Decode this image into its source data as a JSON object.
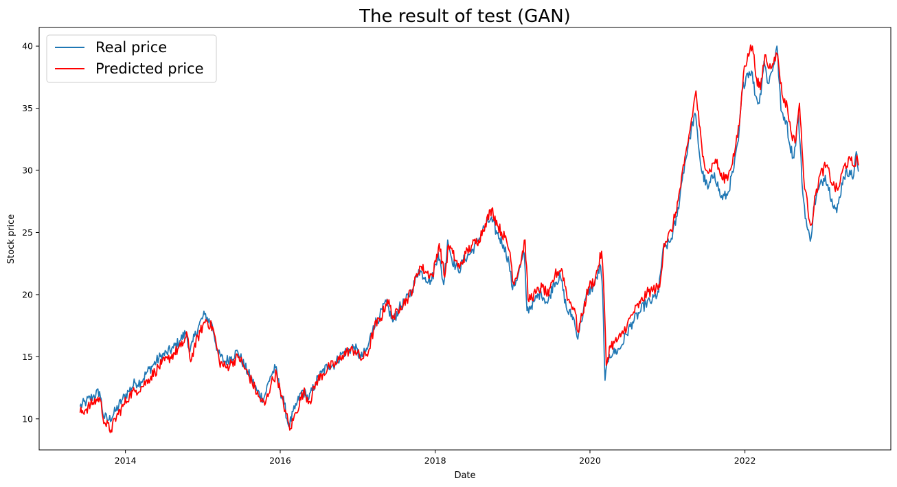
{
  "chart_data": {
    "type": "line",
    "title": "The result of test (GAN)",
    "xlabel": "Date",
    "ylabel": "Stock price",
    "xlim": [
      "2012-11-20",
      "2023-11-20"
    ],
    "ylim": [
      7.5,
      41.5
    ],
    "x_ticks": [
      "2014",
      "2016",
      "2018",
      "2020",
      "2022"
    ],
    "y_ticks": [
      "10",
      "15",
      "20",
      "25",
      "30",
      "35",
      "40"
    ],
    "grid": false,
    "legend": "upper-left",
    "series": [
      {
        "name": "Real price",
        "color": "#1f77b4",
        "points": [
          [
            "2013-06-01",
            11.0
          ],
          [
            "2013-07-01",
            11.4
          ],
          [
            "2013-08-01",
            11.8
          ],
          [
            "2013-09-01",
            12.2
          ],
          [
            "2013-09-20",
            10.2
          ],
          [
            "2013-10-15",
            9.9
          ],
          [
            "2013-11-15",
            10.6
          ],
          [
            "2013-12-15",
            11.5
          ],
          [
            "2014-01-15",
            12.2
          ],
          [
            "2014-02-15",
            12.9
          ],
          [
            "2014-03-15",
            13.0
          ],
          [
            "2014-04-15",
            13.8
          ],
          [
            "2014-05-15",
            14.4
          ],
          [
            "2014-06-15",
            15.0
          ],
          [
            "2014-07-15",
            15.3
          ],
          [
            "2014-08-15",
            15.7
          ],
          [
            "2014-09-15",
            16.3
          ],
          [
            "2014-10-15",
            17.0
          ],
          [
            "2014-11-01",
            15.4
          ],
          [
            "2014-11-15",
            16.2
          ],
          [
            "2014-12-15",
            17.6
          ],
          [
            "2015-01-10",
            18.4
          ],
          [
            "2015-02-15",
            17.5
          ],
          [
            "2015-03-15",
            15.2
          ],
          [
            "2015-04-15",
            14.6
          ],
          [
            "2015-05-15",
            15.0
          ],
          [
            "2015-06-15",
            15.4
          ],
          [
            "2015-07-15",
            14.3
          ],
          [
            "2015-08-15",
            13.3
          ],
          [
            "2015-09-15",
            12.2
          ],
          [
            "2015-10-15",
            11.6
          ],
          [
            "2015-11-15",
            13.4
          ],
          [
            "2015-12-10",
            14.1
          ],
          [
            "2016-01-01",
            12.3
          ],
          [
            "2016-01-20",
            11.2
          ],
          [
            "2016-02-10",
            9.4
          ],
          [
            "2016-03-10",
            10.8
          ],
          [
            "2016-04-15",
            12.3
          ],
          [
            "2016-05-15",
            11.6
          ],
          [
            "2016-06-15",
            12.9
          ],
          [
            "2016-07-15",
            13.7
          ],
          [
            "2016-08-15",
            14.3
          ],
          [
            "2016-09-15",
            14.4
          ],
          [
            "2016-10-15",
            15.2
          ],
          [
            "2016-11-15",
            15.5
          ],
          [
            "2016-12-15",
            15.8
          ],
          [
            "2017-01-15",
            14.9
          ],
          [
            "2017-02-15",
            15.6
          ],
          [
            "2017-03-15",
            17.5
          ],
          [
            "2017-04-15",
            18.3
          ],
          [
            "2017-05-15",
            19.4
          ],
          [
            "2017-06-15",
            17.8
          ],
          [
            "2017-07-15",
            18.9
          ],
          [
            "2017-08-15",
            19.5
          ],
          [
            "2017-09-15",
            20.4
          ],
          [
            "2017-10-15",
            22.0
          ],
          [
            "2017-11-15",
            21.4
          ],
          [
            "2017-12-15",
            21.1
          ],
          [
            "2018-01-15",
            23.4
          ],
          [
            "2018-02-10",
            20.8
          ],
          [
            "2018-03-01",
            24.4
          ],
          [
            "2018-03-20",
            22.9
          ],
          [
            "2018-04-20",
            21.9
          ],
          [
            "2018-05-20",
            22.9
          ],
          [
            "2018-06-20",
            23.4
          ],
          [
            "2018-07-20",
            24.3
          ],
          [
            "2018-08-20",
            25.4
          ],
          [
            "2018-09-20",
            26.1
          ],
          [
            "2018-10-20",
            24.9
          ],
          [
            "2018-11-20",
            24.0
          ],
          [
            "2018-12-15",
            22.6
          ],
          [
            "2019-01-01",
            20.4
          ],
          [
            "2019-01-30",
            21.8
          ],
          [
            "2019-02-25",
            23.3
          ],
          [
            "2019-03-10",
            18.7
          ],
          [
            "2019-04-15",
            19.5
          ],
          [
            "2019-05-15",
            20.2
          ],
          [
            "2019-06-15",
            19.3
          ],
          [
            "2019-07-15",
            21.0
          ],
          [
            "2019-08-15",
            21.4
          ],
          [
            "2019-09-15",
            18.7
          ],
          [
            "2019-10-15",
            18.2
          ],
          [
            "2019-11-01",
            16.6
          ],
          [
            "2019-11-20",
            17.8
          ],
          [
            "2019-12-20",
            20.2
          ],
          [
            "2020-01-20",
            20.7
          ],
          [
            "2020-02-20",
            22.3
          ],
          [
            "2020-03-01",
            20.0
          ],
          [
            "2020-03-12",
            13.1
          ],
          [
            "2020-04-01",
            15.2
          ],
          [
            "2020-04-20",
            15.3
          ],
          [
            "2020-05-20",
            15.6
          ],
          [
            "2020-06-20",
            16.8
          ],
          [
            "2020-07-20",
            17.8
          ],
          [
            "2020-08-20",
            18.5
          ],
          [
            "2020-09-20",
            19.3
          ],
          [
            "2020-10-20",
            19.5
          ],
          [
            "2020-11-20",
            20.2
          ],
          [
            "2020-12-10",
            23.6
          ],
          [
            "2021-01-15",
            24.3
          ],
          [
            "2021-02-15",
            26.3
          ],
          [
            "2021-03-15",
            29.8
          ],
          [
            "2021-04-15",
            32.6
          ],
          [
            "2021-05-10",
            34.6
          ],
          [
            "2021-06-10",
            30.0
          ],
          [
            "2021-07-10",
            28.5
          ],
          [
            "2021-08-10",
            29.8
          ],
          [
            "2021-09-10",
            27.8
          ],
          [
            "2021-10-10",
            28.0
          ],
          [
            "2021-11-10",
            30.2
          ],
          [
            "2021-12-01",
            32.4
          ],
          [
            "2021-12-20",
            36.5
          ],
          [
            "2022-01-10",
            37.8
          ],
          [
            "2022-02-01",
            38.0
          ],
          [
            "2022-02-20",
            36.0
          ],
          [
            "2022-03-10",
            35.4
          ],
          [
            "2022-04-01",
            38.8
          ],
          [
            "2022-04-20",
            37.0
          ],
          [
            "2022-05-15",
            38.4
          ],
          [
            "2022-06-01",
            40.0
          ],
          [
            "2022-06-20",
            34.8
          ],
          [
            "2022-07-15",
            34.0
          ],
          [
            "2022-08-01",
            32.0
          ],
          [
            "2022-08-20",
            31.0
          ],
          [
            "2022-09-10",
            34.5
          ],
          [
            "2022-10-01",
            28.1
          ],
          [
            "2022-10-20",
            25.5
          ],
          [
            "2022-11-05",
            24.3
          ],
          [
            "2022-11-25",
            27.3
          ],
          [
            "2022-12-15",
            28.5
          ],
          [
            "2023-01-15",
            29.6
          ],
          [
            "2023-02-15",
            27.7
          ],
          [
            "2023-03-10",
            26.6
          ],
          [
            "2023-04-10",
            29.5
          ],
          [
            "2023-05-10",
            30.0
          ],
          [
            "2023-05-25",
            29.3
          ],
          [
            "2023-06-10",
            31.5
          ],
          [
            "2023-06-20",
            29.9
          ]
        ]
      },
      {
        "name": "Predicted price",
        "color": "#ff0000",
        "points": [
          [
            "2013-06-01",
            10.5
          ],
          [
            "2013-07-01",
            10.8
          ],
          [
            "2013-08-01",
            11.3
          ],
          [
            "2013-09-01",
            11.7
          ],
          [
            "2013-09-25",
            9.7
          ],
          [
            "2013-10-25",
            9.1
          ],
          [
            "2013-11-20",
            10.2
          ],
          [
            "2013-12-20",
            11.0
          ],
          [
            "2014-01-20",
            11.9
          ],
          [
            "2014-02-20",
            12.3
          ],
          [
            "2014-03-20",
            12.6
          ],
          [
            "2014-04-20",
            13.2
          ],
          [
            "2014-05-20",
            13.8
          ],
          [
            "2014-06-20",
            14.4
          ],
          [
            "2014-07-20",
            14.8
          ],
          [
            "2014-08-20",
            15.3
          ],
          [
            "2014-09-20",
            15.8
          ],
          [
            "2014-10-20",
            16.7
          ],
          [
            "2014-11-05",
            14.6
          ],
          [
            "2014-11-20",
            15.7
          ],
          [
            "2014-12-20",
            17.0
          ],
          [
            "2015-01-15",
            18.0
          ],
          [
            "2015-02-20",
            17.2
          ],
          [
            "2015-03-20",
            14.6
          ],
          [
            "2015-04-20",
            14.1
          ],
          [
            "2015-05-20",
            14.6
          ],
          [
            "2015-06-20",
            15.0
          ],
          [
            "2015-07-20",
            14.0
          ],
          [
            "2015-08-20",
            13.0
          ],
          [
            "2015-09-20",
            11.8
          ],
          [
            "2015-10-20",
            11.1
          ],
          [
            "2015-11-20",
            12.9
          ],
          [
            "2015-12-15",
            13.7
          ],
          [
            "2016-01-05",
            11.8
          ],
          [
            "2016-01-25",
            10.7
          ],
          [
            "2016-02-15",
            9.1
          ],
          [
            "2016-03-15",
            10.5
          ],
          [
            "2016-04-20",
            12.2
          ],
          [
            "2016-05-20",
            11.4
          ],
          [
            "2016-06-20",
            13.0
          ],
          [
            "2016-07-20",
            13.6
          ],
          [
            "2016-08-20",
            14.2
          ],
          [
            "2016-09-20",
            14.4
          ],
          [
            "2016-10-20",
            15.1
          ],
          [
            "2016-11-20",
            15.5
          ],
          [
            "2016-12-20",
            15.5
          ],
          [
            "2017-01-20",
            14.8
          ],
          [
            "2017-02-20",
            15.4
          ],
          [
            "2017-03-20",
            17.4
          ],
          [
            "2017-04-20",
            18.1
          ],
          [
            "2017-05-20",
            19.6
          ],
          [
            "2017-06-20",
            18.1
          ],
          [
            "2017-07-20",
            19.1
          ],
          [
            "2017-08-20",
            19.6
          ],
          [
            "2017-09-20",
            20.6
          ],
          [
            "2017-10-20",
            22.3
          ],
          [
            "2017-11-20",
            21.8
          ],
          [
            "2017-12-20",
            21.5
          ],
          [
            "2018-01-20",
            24.1
          ],
          [
            "2018-02-15",
            21.4
          ],
          [
            "2018-03-05",
            24.0
          ],
          [
            "2018-03-25",
            23.3
          ],
          [
            "2018-04-25",
            22.1
          ],
          [
            "2018-05-25",
            23.3
          ],
          [
            "2018-06-25",
            24.0
          ],
          [
            "2018-07-25",
            24.4
          ],
          [
            "2018-08-25",
            25.7
          ],
          [
            "2018-09-25",
            26.9
          ],
          [
            "2018-10-25",
            25.5
          ],
          [
            "2018-11-25",
            24.6
          ],
          [
            "2018-12-20",
            23.4
          ],
          [
            "2019-01-05",
            20.9
          ],
          [
            "2019-02-05",
            22.4
          ],
          [
            "2019-03-01",
            24.4
          ],
          [
            "2019-03-15",
            19.6
          ],
          [
            "2019-04-20",
            20.1
          ],
          [
            "2019-05-20",
            20.6
          ],
          [
            "2019-06-20",
            19.9
          ],
          [
            "2019-07-20",
            21.6
          ],
          [
            "2019-08-20",
            22.1
          ],
          [
            "2019-09-20",
            19.6
          ],
          [
            "2019-10-20",
            18.9
          ],
          [
            "2019-11-05",
            17.0
          ],
          [
            "2019-11-25",
            18.3
          ],
          [
            "2019-12-25",
            20.6
          ],
          [
            "2020-01-25",
            21.2
          ],
          [
            "2020-02-25",
            23.5
          ],
          [
            "2020-03-05",
            21.0
          ],
          [
            "2020-03-18",
            14.3
          ],
          [
            "2020-04-05",
            15.9
          ],
          [
            "2020-04-25",
            16.1
          ],
          [
            "2020-05-25",
            16.6
          ],
          [
            "2020-06-25",
            17.6
          ],
          [
            "2020-07-25",
            18.6
          ],
          [
            "2020-08-25",
            19.3
          ],
          [
            "2020-09-25",
            20.1
          ],
          [
            "2020-10-25",
            20.4
          ],
          [
            "2020-11-25",
            20.6
          ],
          [
            "2020-12-15",
            24.1
          ],
          [
            "2021-01-20",
            25.1
          ],
          [
            "2021-02-20",
            27.6
          ],
          [
            "2021-03-20",
            30.4
          ],
          [
            "2021-04-20",
            33.6
          ],
          [
            "2021-05-15",
            36.4
          ],
          [
            "2021-06-15",
            31.1
          ],
          [
            "2021-07-15",
            29.8
          ],
          [
            "2021-08-15",
            30.9
          ],
          [
            "2021-09-15",
            29.3
          ],
          [
            "2021-10-15",
            29.6
          ],
          [
            "2021-11-15",
            31.6
          ],
          [
            "2021-12-05",
            33.6
          ],
          [
            "2021-12-25",
            37.8
          ],
          [
            "2022-01-15",
            39.4
          ],
          [
            "2022-02-05",
            40.0
          ],
          [
            "2022-02-25",
            37.4
          ],
          [
            "2022-03-15",
            36.5
          ],
          [
            "2022-04-05",
            39.3
          ],
          [
            "2022-04-25",
            38.2
          ],
          [
            "2022-05-20",
            39.1
          ],
          [
            "2022-06-05",
            39.2
          ],
          [
            "2022-06-25",
            36.1
          ],
          [
            "2022-07-20",
            35.1
          ],
          [
            "2022-08-05",
            33.2
          ],
          [
            "2022-08-25",
            32.2
          ],
          [
            "2022-09-15",
            35.4
          ],
          [
            "2022-10-05",
            29.5
          ],
          [
            "2022-10-25",
            26.8
          ],
          [
            "2022-11-10",
            25.6
          ],
          [
            "2022-11-30",
            28.0
          ],
          [
            "2022-12-20",
            29.6
          ],
          [
            "2023-01-20",
            30.4
          ],
          [
            "2023-02-20",
            28.8
          ],
          [
            "2023-03-15",
            28.4
          ],
          [
            "2023-04-15",
            30.4
          ],
          [
            "2023-05-15",
            30.8
          ],
          [
            "2023-05-30",
            30.3
          ],
          [
            "2023-06-10",
            31.0
          ],
          [
            "2023-06-20",
            30.4
          ]
        ]
      }
    ]
  }
}
